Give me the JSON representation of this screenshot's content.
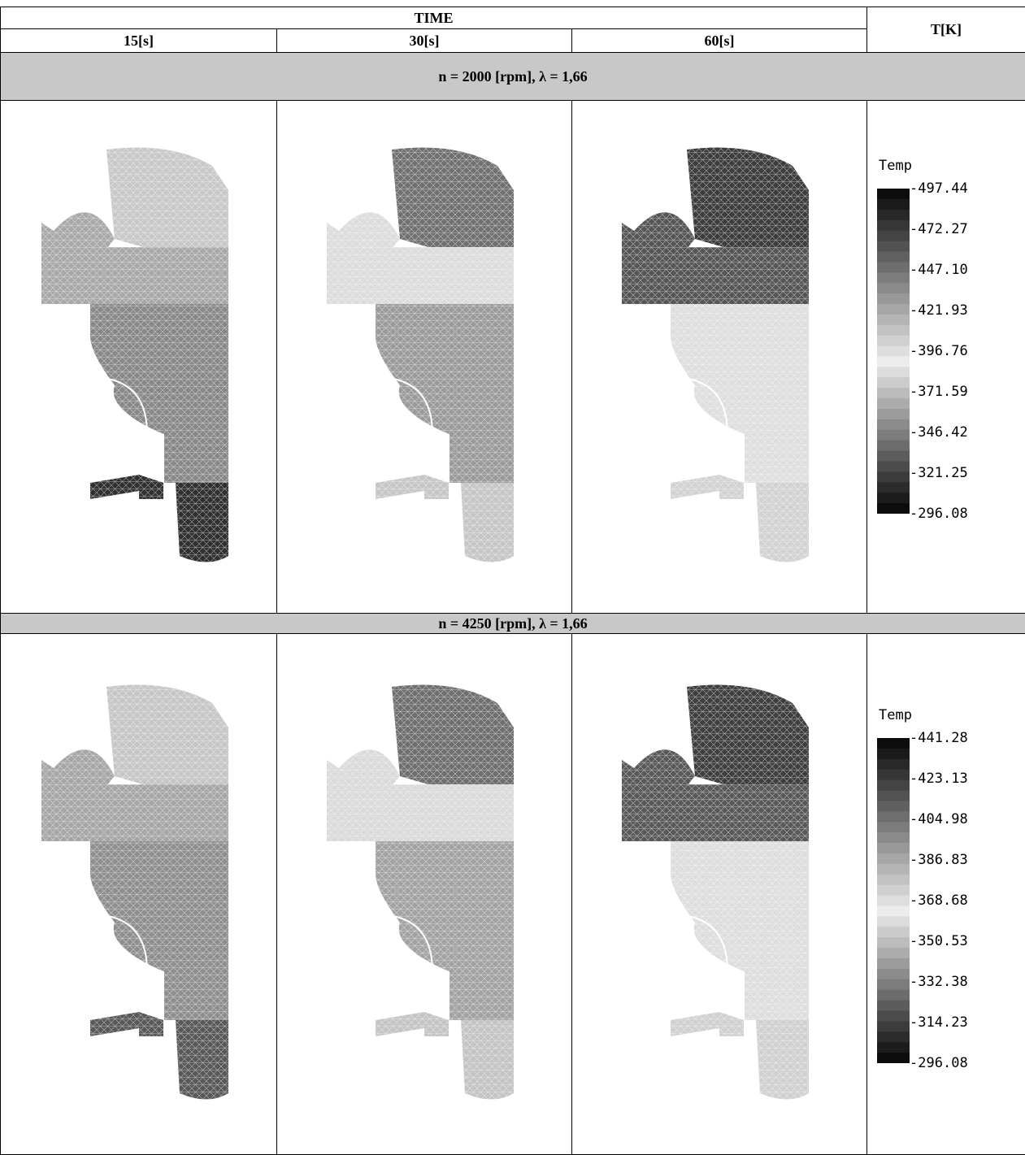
{
  "header": {
    "time_label": "TIME",
    "temp_label": "T[K]",
    "times": [
      "15[s]",
      "30[s]",
      "60[s]"
    ]
  },
  "rows": [
    {
      "label": "n = 2000 [rpm], λ = 1,66",
      "legend_title": "Temp",
      "legend_ticks": [
        "497.44",
        "472.27",
        "447.10",
        "421.93",
        "396.76",
        "371.59",
        "346.42",
        "321.25",
        "296.08"
      ],
      "shading": [
        {
          "top": "#c8c8c8",
          "ring": "#a8a8a8",
          "lower": "#888888",
          "foot": "#303030"
        },
        {
          "top": "#707070",
          "ring": "#dcdcdc",
          "lower": "#9a9a9a",
          "foot": "#c6c6c6"
        },
        {
          "top": "#3c3c3c",
          "ring": "#555555",
          "lower": "#dedede",
          "foot": "#d2d2d2"
        }
      ]
    },
    {
      "label": "n = 4250 [rpm], λ = 1,66",
      "legend_title": "Temp",
      "legend_ticks": [
        "441.28",
        "423.13",
        "404.98",
        "386.83",
        "368.68",
        "350.53",
        "332.38",
        "314.23",
        "296.08"
      ],
      "shading": [
        {
          "top": "#c6c6c6",
          "ring": "#a6a6a6",
          "lower": "#8e8e8e",
          "foot": "#585858"
        },
        {
          "top": "#6e6e6e",
          "ring": "#dadada",
          "lower": "#a2a2a2",
          "foot": "#c4c4c4"
        },
        {
          "top": "#3e3e3e",
          "ring": "#585858",
          "lower": "#dddddd",
          "foot": "#d0d0d0"
        }
      ]
    }
  ],
  "legend_colors": [
    "#0c0c0c",
    "#1a1a1a",
    "#282828",
    "#363636",
    "#444444",
    "#525252",
    "#606060",
    "#6e6e6e",
    "#7c7c7c",
    "#8a8a8a",
    "#989898",
    "#a6a6a6",
    "#b4b4b4",
    "#c2c2c2",
    "#d0d0d0",
    "#dedede",
    "#ececec",
    "#dcdcdc",
    "#cccccc",
    "#bcbcbc",
    "#acacac",
    "#9c9c9c",
    "#8c8c8c",
    "#7c7c7c",
    "#6c6c6c",
    "#5c5c5c",
    "#4c4c4c",
    "#3c3c3c",
    "#2c2c2c",
    "#1c1c1c",
    "#0c0c0c"
  ]
}
